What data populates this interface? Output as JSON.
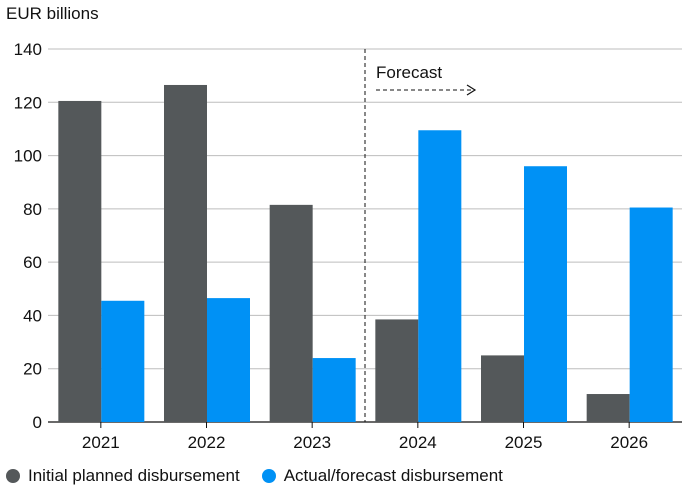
{
  "chart_data": {
    "type": "bar",
    "unit_label": "EUR billions",
    "categories": [
      "2021",
      "2022",
      "2023",
      "2024",
      "2025",
      "2026"
    ],
    "series": [
      {
        "name": "Initial planned disbursement",
        "color": "#54585a",
        "values": [
          120.5,
          126.5,
          81.5,
          38.5,
          25,
          10.5
        ]
      },
      {
        "name": "Actual/forecast disbursement",
        "color": "#0091f5",
        "values": [
          45.5,
          46.5,
          24,
          109.5,
          96,
          80.5
        ]
      }
    ],
    "ylim": [
      0,
      140
    ],
    "yticks": [
      0,
      20,
      40,
      60,
      80,
      100,
      120,
      140
    ],
    "grid": true,
    "forecast_annotation": {
      "label": "Forecast",
      "starts_before": "2024"
    },
    "legend_position": "bottom"
  }
}
